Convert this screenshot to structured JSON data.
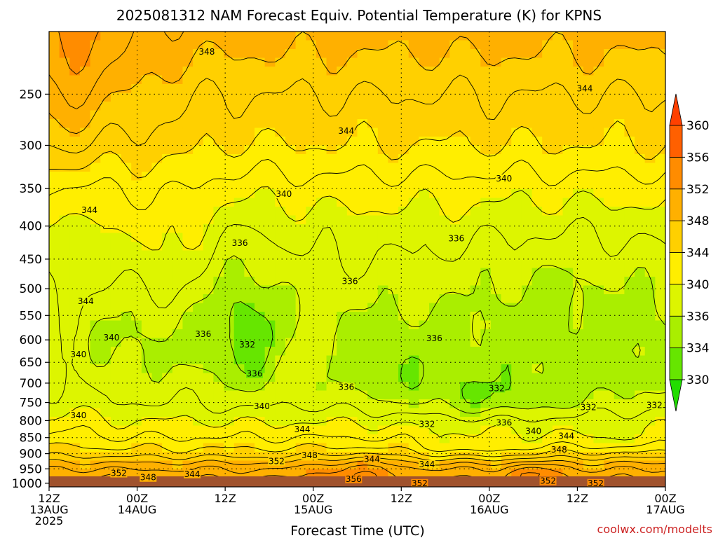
{
  "chart_data": {
    "type": "heatmap",
    "title": "2025081312 NAM Forecast Equiv. Potential Temperature (K) for KPNS",
    "xlabel": "Forecast Time (UTC)",
    "ylabel": "",
    "y_scale": "log-pressure",
    "y_ticks": [
      250,
      300,
      350,
      400,
      450,
      500,
      550,
      600,
      650,
      700,
      750,
      800,
      850,
      900,
      950,
      1000
    ],
    "y_range_hpa": [
      200,
      1013
    ],
    "x_ticks": [
      {
        "t": 0,
        "line1": "12Z",
        "line2": "13AUG",
        "line3": "2025"
      },
      {
        "t": 12,
        "line1": "00Z",
        "line2": "14AUG",
        "line3": ""
      },
      {
        "t": 24,
        "line1": "12Z",
        "line2": "",
        "line3": ""
      },
      {
        "t": 36,
        "line1": "00Z",
        "line2": "15AUG",
        "line3": ""
      },
      {
        "t": 48,
        "line1": "12Z",
        "line2": "",
        "line3": ""
      },
      {
        "t": 60,
        "line1": "00Z",
        "line2": "16AUG",
        "line3": ""
      },
      {
        "t": 72,
        "line1": "12Z",
        "line2": "",
        "line3": ""
      },
      {
        "t": 84,
        "line1": "00Z",
        "line2": "17AUG",
        "line3": ""
      }
    ],
    "grid": true,
    "colorbar": {
      "levels": [
        330,
        334,
        336,
        340,
        344,
        348,
        352,
        356,
        360
      ],
      "colors": [
        "#22dd00",
        "#66e600",
        "#aaee00",
        "#ddf500",
        "#ffee00",
        "#ffd000",
        "#ffb000",
        "#ff8c00",
        "#ff6000",
        "#ff4000"
      ],
      "extend": "both"
    },
    "profile": {
      "pressure_hpa": [
        200,
        250,
        300,
        350,
        400,
        450,
        500,
        550,
        600,
        650,
        700,
        750,
        800,
        850,
        900,
        950,
        1000
      ],
      "theta_e_k": [
        349,
        346,
        344,
        341,
        339,
        338,
        337,
        336,
        335.5,
        336,
        337,
        338,
        340,
        342,
        345,
        350,
        353
      ]
    },
    "contour_labels": [
      {
        "t": 21.5,
        "p": 215,
        "v": "348"
      },
      {
        "t": 73,
        "p": 245,
        "v": "344"
      },
      {
        "t": 40.5,
        "p": 285,
        "v": "344"
      },
      {
        "t": 62,
        "p": 338,
        "v": "340"
      },
      {
        "t": 32,
        "p": 357,
        "v": "340"
      },
      {
        "t": 5.5,
        "p": 378,
        "v": "344"
      },
      {
        "t": 26,
        "p": 425,
        "v": "336"
      },
      {
        "t": 55.5,
        "p": 418,
        "v": "336"
      },
      {
        "t": 41,
        "p": 487,
        "v": "336"
      },
      {
        "t": 5,
        "p": 523,
        "v": "344"
      },
      {
        "t": 21,
        "p": 588,
        "v": "336"
      },
      {
        "t": 27,
        "p": 610,
        "v": "332"
      },
      {
        "t": 8.5,
        "p": 595,
        "v": "340"
      },
      {
        "t": 52.5,
        "p": 597,
        "v": "336"
      },
      {
        "t": 4,
        "p": 632,
        "v": "340"
      },
      {
        "t": 28,
        "p": 677,
        "v": "336"
      },
      {
        "t": 40.5,
        "p": 710,
        "v": "336"
      },
      {
        "t": 61,
        "p": 713,
        "v": "332"
      },
      {
        "t": 29,
        "p": 760,
        "v": "340"
      },
      {
        "t": 73.5,
        "p": 763,
        "v": "332"
      },
      {
        "t": 82.5,
        "p": 757,
        "v": "332"
      },
      {
        "t": 4,
        "p": 785,
        "v": "340"
      },
      {
        "t": 51.5,
        "p": 810,
        "v": "332"
      },
      {
        "t": 62,
        "p": 806,
        "v": "336"
      },
      {
        "t": 66,
        "p": 831,
        "v": "340"
      },
      {
        "t": 70.5,
        "p": 845,
        "v": "344"
      },
      {
        "t": 34.5,
        "p": 825,
        "v": "344"
      },
      {
        "t": 69.5,
        "p": 887,
        "v": "348"
      },
      {
        "t": 35.5,
        "p": 905,
        "v": "348"
      },
      {
        "t": 31,
        "p": 925,
        "v": "352"
      },
      {
        "t": 44,
        "p": 918,
        "v": "344"
      },
      {
        "t": 51.5,
        "p": 935,
        "v": "344"
      },
      {
        "t": 19.5,
        "p": 968,
        "v": "344"
      },
      {
        "t": 9.5,
        "p": 965,
        "v": "352"
      },
      {
        "t": 13.5,
        "p": 980,
        "v": "348"
      },
      {
        "t": 41.5,
        "p": 985,
        "v": "356"
      },
      {
        "t": 50.5,
        "p": 1000,
        "v": "352"
      },
      {
        "t": 68,
        "p": 992,
        "v": "352"
      },
      {
        "t": 74.5,
        "p": 1000,
        "v": "352"
      }
    ]
  },
  "credit": "coolwx.com/modelts",
  "colors": {
    "terrain": "#a0522d",
    "grid": "#000000"
  }
}
